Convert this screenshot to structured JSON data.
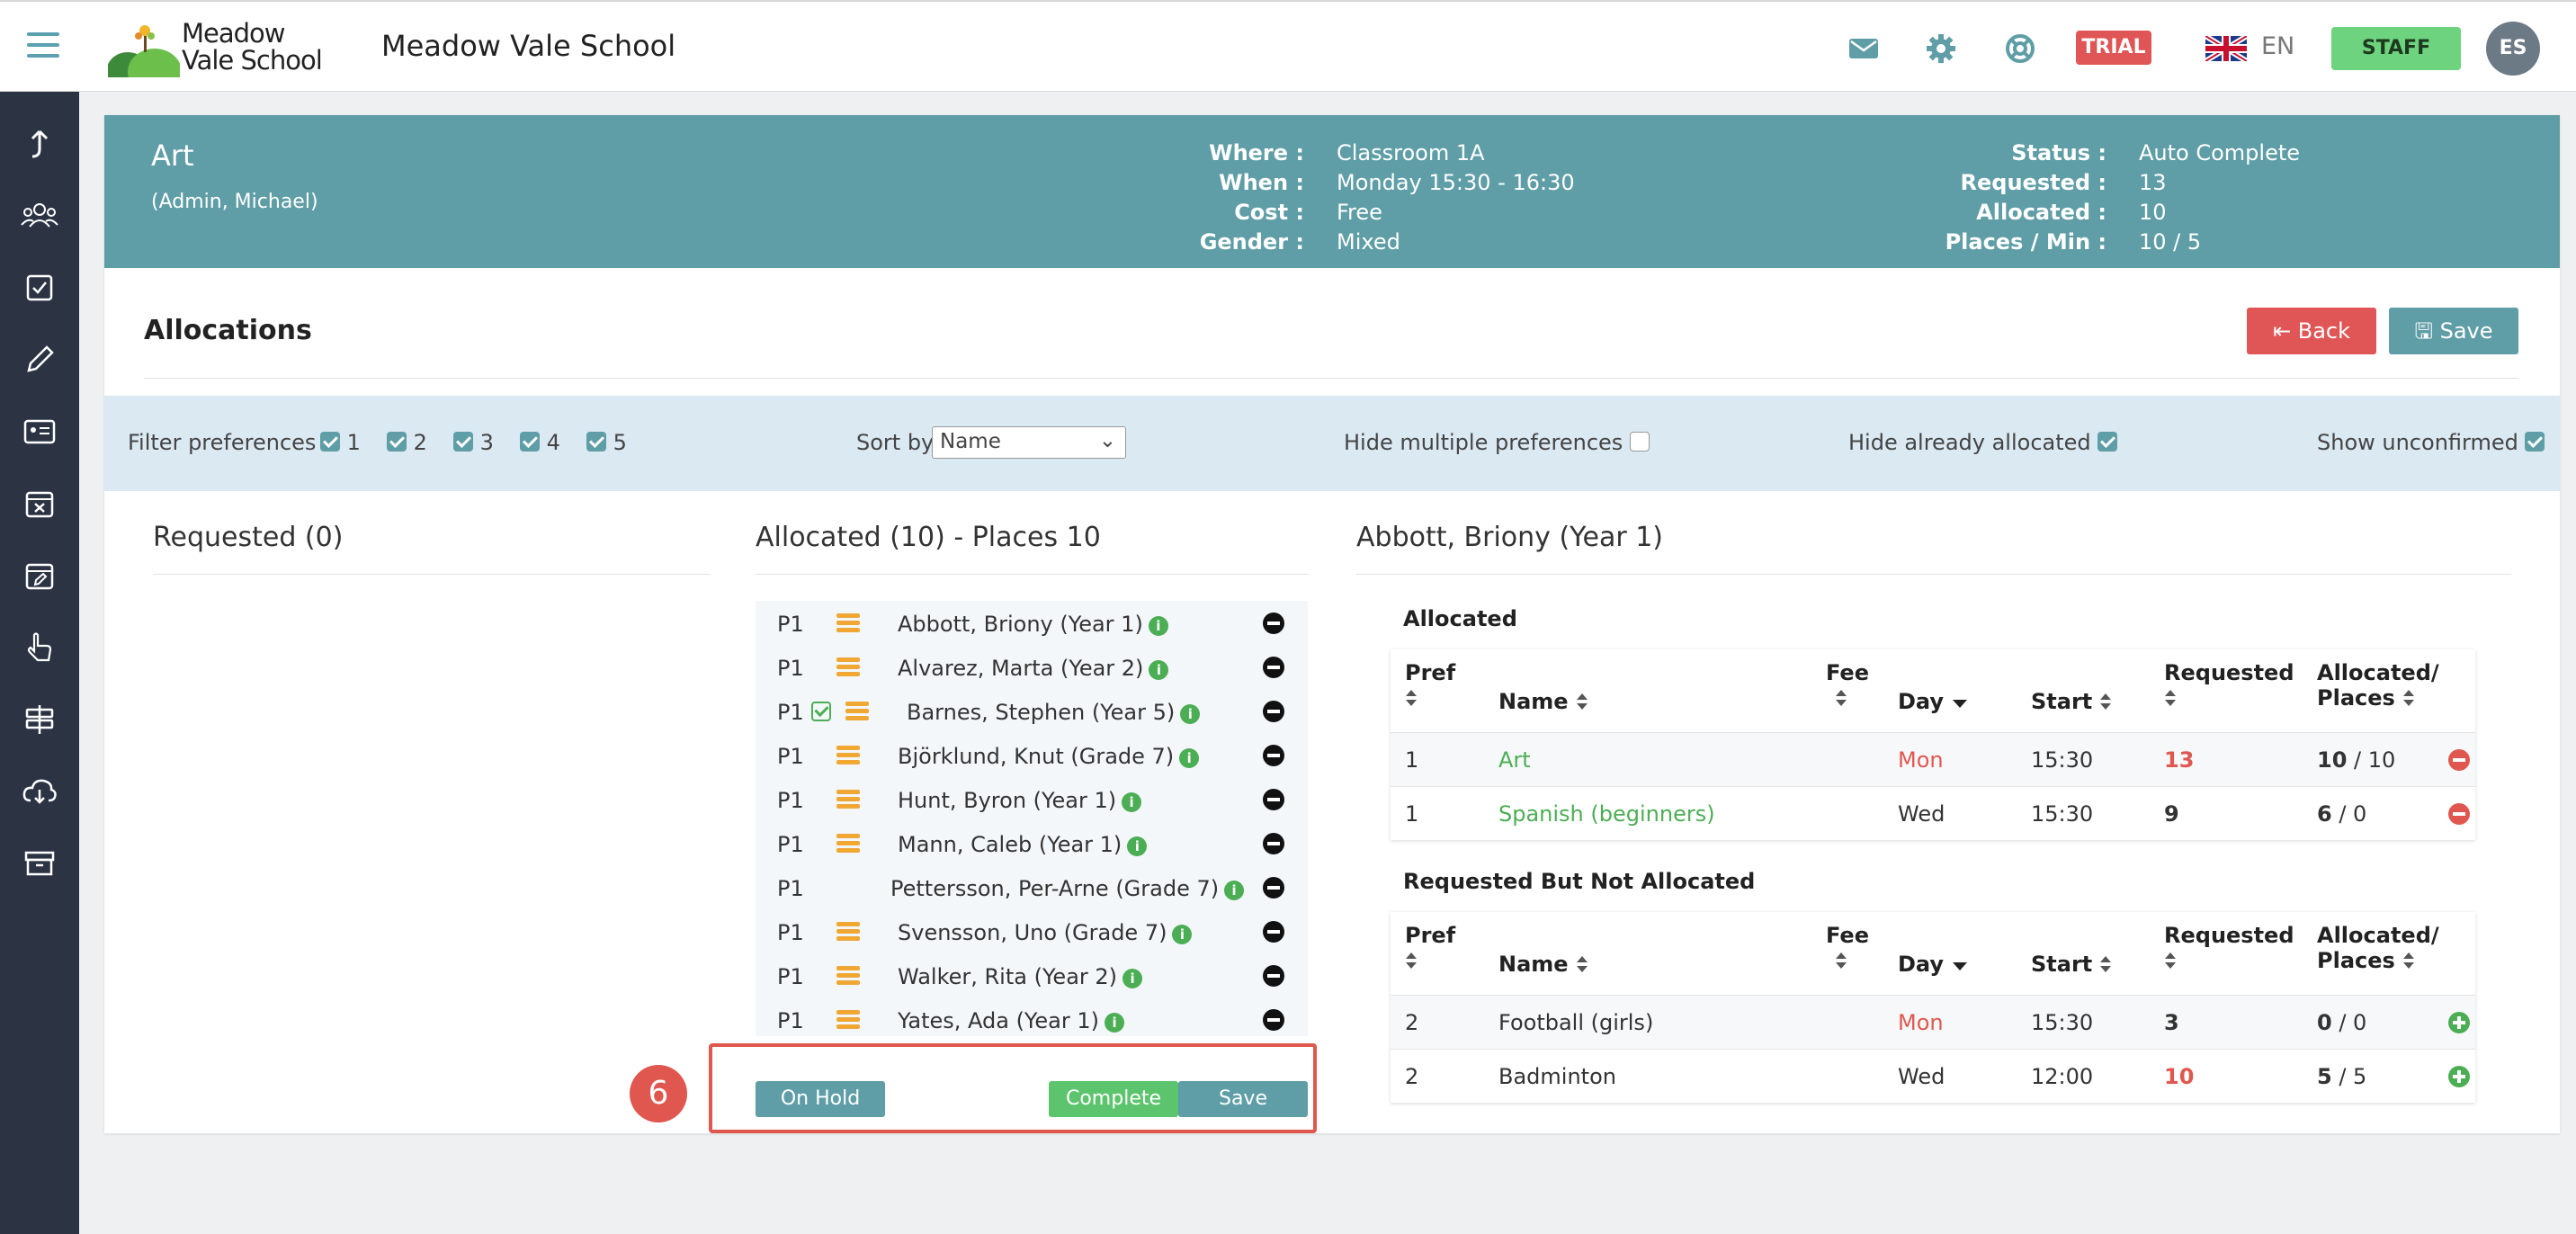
{
  "topbar": {
    "logo_line1": "Meadow",
    "logo_line2": "Vale School",
    "school_name": "Meadow Vale School",
    "trial_label": "TRIAL",
    "language": "EN",
    "staff_label": "STAFF",
    "avatar_initials": "ES"
  },
  "activity": {
    "title": "Art",
    "subtitle": "(Admin, Michael)",
    "details_left": [
      {
        "label": "Where :",
        "value": "Classroom 1A"
      },
      {
        "label": "When :",
        "value": "Monday 15:30 - 16:30"
      },
      {
        "label": "Cost :",
        "value": "Free"
      },
      {
        "label": "Gender :",
        "value": "Mixed"
      }
    ],
    "details_right": [
      {
        "label": "Status :",
        "value": "Auto Complete"
      },
      {
        "label": "Requested :",
        "value": "13"
      },
      {
        "label": "Allocated :",
        "value": "10"
      },
      {
        "label": "Places / Min :",
        "value": "10 / 5"
      }
    ]
  },
  "allocations": {
    "title": "Allocations",
    "back_label": "Back",
    "save_label": "Save"
  },
  "filters": {
    "filter_label": "Filter preferences",
    "prefs": [
      "1",
      "2",
      "3",
      "4",
      "5"
    ],
    "sort_label": "Sort by",
    "sort_value": "Name",
    "hide_multiple_label": "Hide multiple preferences",
    "hide_allocated_label": "Hide already allocated",
    "show_unconfirmed_label": "Show unconfirmed"
  },
  "requested": {
    "title": "Requested (0)"
  },
  "allocated": {
    "title": "Allocated (10) - Places 10",
    "rows": [
      {
        "pref": "P1",
        "name": "Abbott, Briony (Year 1)"
      },
      {
        "pref": "P1",
        "name": "Alvarez, Marta (Year 2)"
      },
      {
        "pref": "P1",
        "name": "Barnes, Stephen (Year 5)"
      },
      {
        "pref": "P1",
        "name": "Björklund, Knut (Grade 7)"
      },
      {
        "pref": "P1",
        "name": "Hunt, Byron (Year 1)"
      },
      {
        "pref": "P1",
        "name": "Mann, Caleb (Year 1)"
      },
      {
        "pref": "P1",
        "name": "Pettersson, Per-Arne (Grade 7)"
      },
      {
        "pref": "P1",
        "name": "Svensson, Uno (Grade 7)"
      },
      {
        "pref": "P1",
        "name": "Walker, Rita (Year 2)"
      },
      {
        "pref": "P1",
        "name": "Yates, Ada (Year 1)"
      }
    ],
    "info_glyph": "i",
    "on_hold_label": "On Hold",
    "complete_label": "Complete",
    "save_label": "Save",
    "step_number": "6"
  },
  "student": {
    "title": "Abbott, Briony (Year 1)",
    "columns": {
      "pref": "Pref",
      "name": "Name",
      "fee": "Fee",
      "day": "Day",
      "start": "Start",
      "requested": "Requested",
      "allocated_line1": "Allocated/",
      "allocated_line2": "Places"
    },
    "allocated_title": "Allocated",
    "allocated_rows": [
      {
        "pref": "1",
        "name": "Art",
        "day": "Mon",
        "start": "15:30",
        "requested": "13",
        "alloc": "10",
        "places": "/ 10"
      },
      {
        "pref": "1",
        "name": "Spanish (beginners)",
        "day": "Wed",
        "start": "15:30",
        "requested": "9",
        "alloc": "6",
        "places": "/ 0"
      }
    ],
    "not_allocated_title": "Requested But Not Allocated",
    "not_allocated_rows": [
      {
        "pref": "2",
        "name": "Football (girls)",
        "day": "Mon",
        "start": "15:30",
        "requested": "3",
        "alloc": "0",
        "places": "/ 0"
      },
      {
        "pref": "2",
        "name": "Badminton",
        "day": "Wed",
        "start": "12:00",
        "requested": "10",
        "alloc": "5",
        "places": "/ 5"
      }
    ]
  }
}
